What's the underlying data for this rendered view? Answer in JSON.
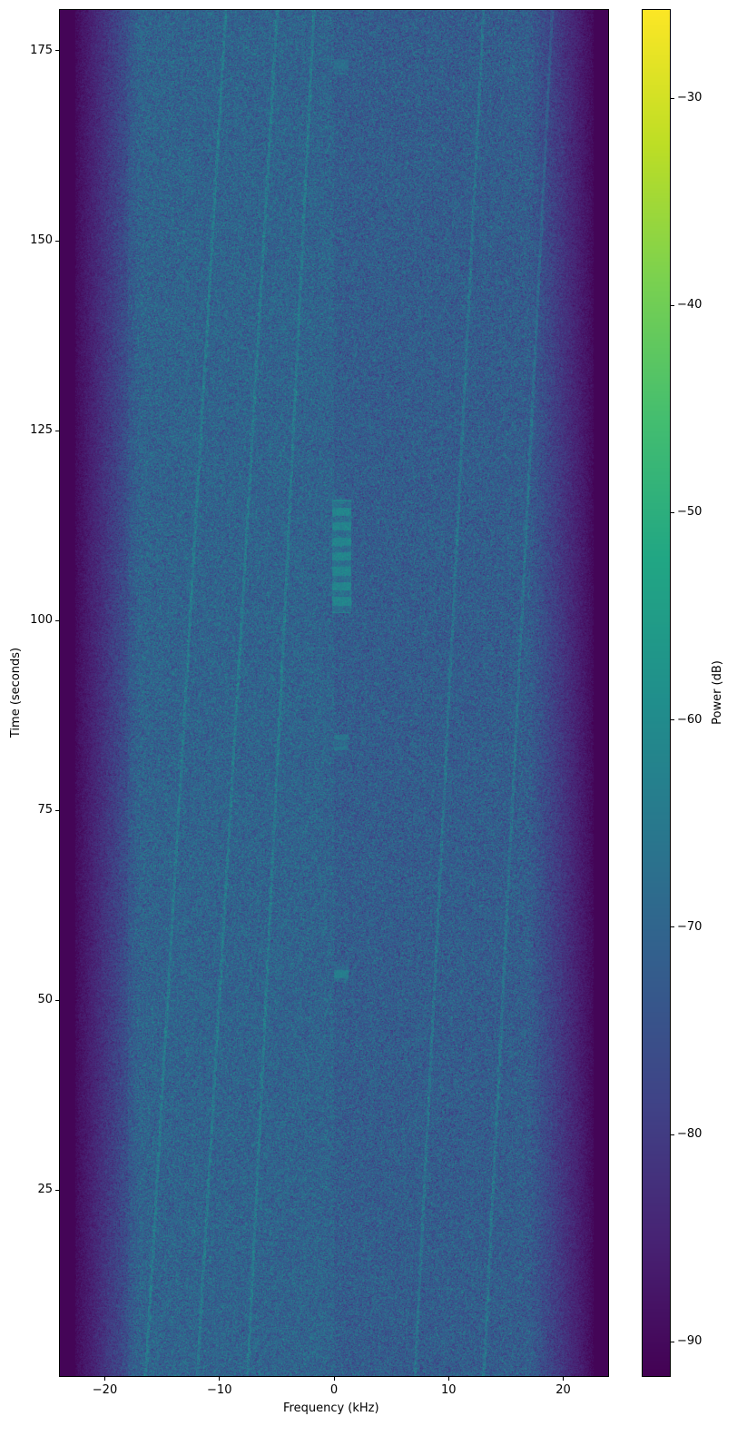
{
  "chart_data": {
    "type": "heatmap",
    "title": "",
    "xlabel": "Frequency (kHz)",
    "ylabel": "Time (seconds)",
    "colorbar_label": "Power (dB)",
    "colormap": "viridis",
    "xlim": [
      -24,
      24
    ],
    "ylim": [
      0.4,
      180.5
    ],
    "clim": [
      -91.7,
      -25.7
    ],
    "xticks": [
      -20,
      -10,
      0,
      10,
      20
    ],
    "xtick_labels": [
      "−20",
      "−10",
      "0",
      "10",
      "20"
    ],
    "yticks": [
      25,
      50,
      75,
      100,
      125,
      150,
      175
    ],
    "ytick_labels": [
      "25",
      "50",
      "75",
      "100",
      "125",
      "150",
      "175"
    ],
    "cticks": [
      -90,
      -80,
      -70,
      -60,
      -50,
      -40,
      -30
    ],
    "ctick_labels": [
      "−90",
      "−80",
      "−70",
      "−60",
      "−50",
      "−40",
      "−30"
    ],
    "background_level_db": -72,
    "band_edge_khz": 21,
    "outside_band_level_db": -91,
    "drift_lines": [
      {
        "f_start": -7.6,
        "f_end": -1.8,
        "t_start": 0,
        "t_end": 180
      },
      {
        "f_start": -16.5,
        "f_end": -9.5,
        "t_start": 0,
        "t_end": 180
      },
      {
        "f_start": -12,
        "f_end": -5,
        "t_start": 0,
        "t_end": 180
      },
      {
        "f_start": 7,
        "f_end": 13,
        "t_start": 0,
        "t_end": 180
      },
      {
        "f_start": 13,
        "f_end": 19,
        "t_start": 0,
        "t_end": 180
      }
    ],
    "bursts": [
      {
        "f_min": -0.2,
        "f_max": 1.5,
        "t_min": 101,
        "t_max": 116,
        "level_db": -62
      },
      {
        "f_min": 0,
        "f_max": 1.2,
        "t_min": 52.5,
        "t_max": 54.5,
        "level_db": -64
      },
      {
        "f_min": 0,
        "f_max": 1.2,
        "t_min": 83,
        "t_max": 85,
        "level_db": -66
      },
      {
        "f_min": 0,
        "f_max": 1.2,
        "t_min": 172,
        "t_max": 174,
        "level_db": -68
      }
    ]
  }
}
